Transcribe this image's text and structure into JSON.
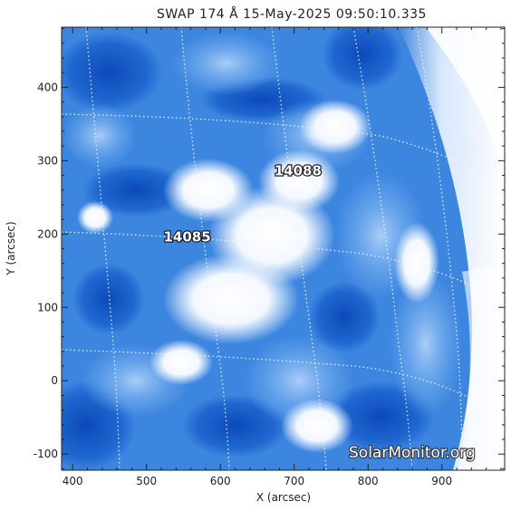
{
  "title": "SWAP 174 Å 15-May-2025 09:50:10.335",
  "x_axis": {
    "label": "X (arcsec)",
    "ticks": [
      "400",
      "500",
      "600",
      "700",
      "800",
      "900"
    ],
    "range": [
      385,
      985
    ]
  },
  "y_axis": {
    "label": "Y (arcsec)",
    "ticks": [
      "-100",
      "0",
      "100",
      "200",
      "300",
      "400"
    ],
    "range": [
      -122,
      482
    ]
  },
  "active_regions": [
    {
      "label": "14088",
      "x": 705,
      "y": 280
    },
    {
      "label": "14085",
      "x": 555,
      "y": 190
    }
  ],
  "watermark": "SolarMonitor.org",
  "colors": {
    "plasma_light": "#ffffff",
    "plasma_mid": "#4f95e6",
    "plasma_dark": "#0d4fbf",
    "grid_lines": "#e8f1ff",
    "text": "#222222"
  }
}
